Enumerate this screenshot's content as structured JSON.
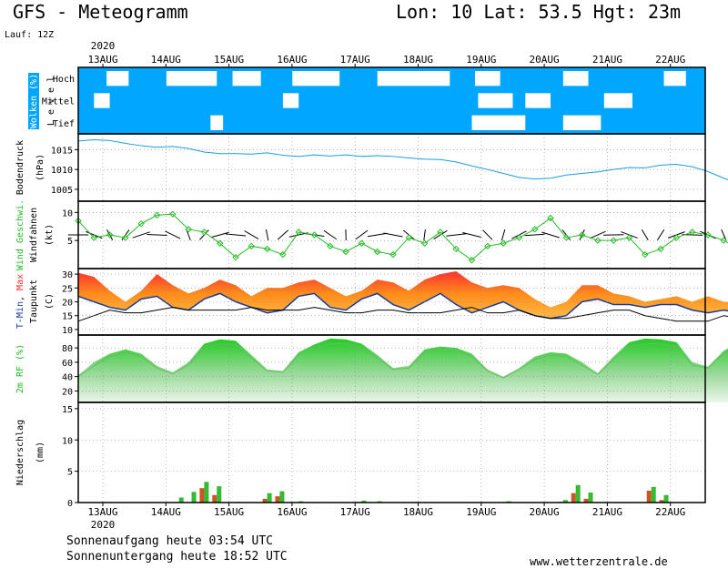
{
  "header": {
    "title": "GFS - Meteogramm",
    "location": "Lon: 10 Lat: 53.5 Hgt: 23m",
    "run": "Lauf: 12Z",
    "year_top": "2020",
    "year_bottom": "2020"
  },
  "dates": [
    "13AUG",
    "14AUG",
    "15AUG",
    "16AUG",
    "17AUG",
    "18AUG",
    "19AUG",
    "20AUG",
    "21AUG",
    "22AUG"
  ],
  "panels": {
    "clouds": {
      "label_main": "Wolken (%)",
      "label_sub": "L e v e l",
      "levels": [
        "Hoch",
        "Mittel",
        "Tief"
      ]
    },
    "pressure": {
      "label_main": "Bodendruck",
      "label_unit": "(hPa)",
      "ticks": [
        "1015",
        "1010",
        "1005"
      ]
    },
    "wind": {
      "label_main": "Wind Geschwi.",
      "label_sub": "Windfahnen",
      "label_unit": "(kt)",
      "ticks": [
        "10",
        "5"
      ]
    },
    "temp": {
      "label_min": "T-Min",
      "label_sep": ",",
      "label_max": "Max",
      "label_sub": "Taupunkt",
      "label_unit": "(C)",
      "ticks": [
        "30",
        "25",
        "20",
        "15",
        "10"
      ]
    },
    "rh": {
      "label_main": "2m RF (%)",
      "ticks": [
        "80",
        "60",
        "40",
        "20"
      ]
    },
    "precip": {
      "label_main": "Niederschlag",
      "label_unit": "(mm)",
      "ticks": [
        "15",
        "10",
        "5",
        "0"
      ]
    }
  },
  "chart_data": [
    {
      "type": "heatmap",
      "panel": "clouds",
      "rows": [
        "Hoch",
        "Mittel",
        "Tief"
      ],
      "colors": {
        "clear": "#00a6ff",
        "cloud": "#ffffff"
      },
      "cloud_cells": [
        [
          0,
          0.9,
          1.6
        ],
        [
          0,
          2.8,
          4.4
        ],
        [
          0,
          4.9,
          5.8
        ],
        [
          0,
          6.8,
          8.3
        ],
        [
          0,
          9.5,
          11.8
        ],
        [
          0,
          12.6,
          13.4
        ],
        [
          0,
          15.4,
          16.2
        ],
        [
          0,
          18.6,
          19.3
        ],
        [
          0,
          20.1,
          21.4
        ],
        [
          0,
          22.4,
          23.3
        ],
        [
          0,
          25.8,
          26.3
        ],
        [
          0,
          28.7,
          29.3
        ],
        [
          1,
          0.5,
          1.0
        ],
        [
          1,
          6.5,
          7.0
        ],
        [
          1,
          12.7,
          13.8
        ],
        [
          1,
          14.2,
          15.0
        ],
        [
          1,
          16.7,
          17.6
        ],
        [
          1,
          24.9,
          25.4
        ],
        [
          1,
          26.3,
          26.8
        ],
        [
          2,
          4.2,
          4.6
        ],
        [
          2,
          12.5,
          14.2
        ],
        [
          2,
          15.4,
          16.6
        ],
        [
          2,
          20.4,
          21.6
        ],
        [
          2,
          22.8,
          23.6
        ],
        [
          2,
          25.6,
          26.3
        ]
      ]
    },
    {
      "type": "line",
      "panel": "pressure",
      "ylabel": "(hPa)",
      "ylim": [
        1002,
        1019
      ],
      "color": "#1a9ee0",
      "x_days": [
        0,
        0.5,
        1,
        1.5,
        2,
        2.5,
        3,
        3.5,
        4,
        4.5,
        5,
        5.5,
        6,
        6.5,
        7,
        7.5,
        8,
        8.5,
        9,
        9.5,
        10,
        10.5,
        11,
        11.5,
        12,
        12.5,
        13,
        13.5,
        14,
        14.5,
        15,
        15.5,
        16,
        16.5,
        17,
        17.5,
        18,
        18.5,
        19,
        19.5,
        20,
        20.5,
        21,
        21.5,
        22,
        22.5,
        23,
        23.5,
        24,
        24.5,
        25,
        25.5,
        26,
        26.5,
        27,
        27.5,
        28,
        28.5,
        29,
        29.5,
        30
      ],
      "values": [
        1017.2,
        1017.5,
        1017.3,
        1016.6,
        1016.0,
        1015.6,
        1015.8,
        1015.3,
        1014.4,
        1014.0,
        1014.0,
        1013.9,
        1014.2,
        1013.6,
        1013.3,
        1013.7,
        1013.4,
        1013.7,
        1013.3,
        1013.5,
        1013.3,
        1012.9,
        1012.6,
        1012.5,
        1011.9,
        1010.9,
        1010.0,
        1009.0,
        1008.0,
        1007.6,
        1007.8,
        1008.6,
        1009.0,
        1009.4,
        1010.0,
        1010.5,
        1010.4,
        1011.1,
        1011.3,
        1010.7,
        1009.5,
        1007.8,
        1006.5,
        1005.3,
        1004.8,
        1004.9,
        1004.4,
        1004.2,
        1003.4,
        1003.0,
        1002.9,
        1003.1,
        1003.4,
        1004.0,
        1004.3,
        1004.4,
        1004.4,
        1004.7,
        1004.9,
        1004.4,
        1003.8
      ]
    },
    {
      "type": "line",
      "panel": "wind",
      "ylabel": "(kt)",
      "ylim": [
        0,
        12
      ],
      "color": "#22bb22",
      "x_days": [
        0,
        0.5,
        1,
        1.5,
        2,
        2.5,
        3,
        3.5,
        4,
        4.5,
        5,
        5.5,
        6,
        6.5,
        7,
        7.5,
        8,
        8.5,
        9,
        9.5,
        10,
        10.5,
        11,
        11.5,
        12,
        12.5,
        13,
        13.5,
        14,
        14.5,
        15,
        15.5,
        16,
        16.5,
        17,
        17.5,
        18,
        18.5,
        19,
        19.5,
        20,
        20.5,
        21,
        21.5,
        22,
        22.5,
        23,
        23.5,
        24,
        24.5,
        25,
        25.5,
        26,
        26.5,
        27,
        27.5,
        28,
        28.5,
        29,
        29.5,
        30
      ],
      "values": [
        8.5,
        5.5,
        6.0,
        5.5,
        8.0,
        9.5,
        9.7,
        7.0,
        6.5,
        4.5,
        2.0,
        4.0,
        3.5,
        2.5,
        6.5,
        6.0,
        4.0,
        3.0,
        4.5,
        3.0,
        2.5,
        5.5,
        4.5,
        6.5,
        3.5,
        1.5,
        4.0,
        4.5,
        5.5,
        7.0,
        9.0,
        5.5,
        6.0,
        5.0,
        5.0,
        5.5,
        2.5,
        3.5,
        5.5,
        6.5,
        6.0,
        5.0,
        3.5,
        1.5,
        2.5,
        3.5,
        6.0,
        6.5,
        6.0,
        4.5,
        2.5,
        3.0,
        6.0,
        2.0,
        6.0,
        7.0,
        3.5,
        2.5,
        8.0,
        4.5,
        9.5
      ]
    },
    {
      "type": "area",
      "panel": "temp",
      "ylabel": "(C)",
      "ylim": [
        8,
        32
      ],
      "series": [
        {
          "name": "T-Min",
          "color": "#1a3a9a"
        },
        {
          "name": "Max",
          "color": "#ff3030"
        },
        {
          "name": "Taupunkt",
          "color": "#000000"
        }
      ],
      "x_days": [
        0,
        0.5,
        1,
        1.5,
        2,
        2.5,
        3,
        3.5,
        4,
        4.5,
        5,
        5.5,
        6,
        6.5,
        7,
        7.5,
        8,
        8.5,
        9,
        9.5,
        10,
        10.5,
        11,
        11.5,
        12,
        12.5,
        13,
        13.5,
        14,
        14.5,
        15,
        15.5,
        16,
        16.5,
        17,
        17.5,
        18,
        18.5,
        19,
        19.5,
        20,
        20.5,
        21,
        21.5,
        22,
        22.5,
        23,
        23.5,
        24,
        24.5,
        25,
        25.5,
        26,
        26.5,
        27,
        27.5,
        28,
        28.5,
        29,
        29.5,
        30
      ],
      "tmin": [
        22,
        20,
        18,
        17,
        21,
        22,
        18,
        17,
        21,
        23,
        20,
        18,
        16,
        17,
        22,
        23,
        18,
        17,
        21,
        23,
        19,
        17,
        20,
        23,
        19,
        16,
        18,
        20,
        17,
        15,
        14,
        15,
        20,
        21,
        19,
        19,
        18,
        19,
        19,
        17,
        16,
        17,
        16,
        15,
        15,
        16,
        14,
        15,
        16,
        18,
        15,
        14,
        14,
        13,
        16,
        17,
        14,
        15,
        16,
        17,
        17
      ],
      "tmax": [
        30.5,
        29,
        24,
        20,
        24,
        30,
        26,
        23,
        25,
        28,
        26,
        22,
        25,
        25,
        27,
        28,
        25,
        22,
        24,
        28,
        27,
        24,
        28,
        30,
        31,
        27,
        25,
        26,
        25,
        21,
        18,
        20,
        26,
        26,
        23,
        22,
        20,
        21,
        22,
        20,
        22,
        20,
        20,
        19,
        19,
        20,
        18,
        18,
        20,
        23,
        22,
        20,
        20,
        18,
        19,
        21,
        19,
        20,
        20,
        19,
        22
      ],
      "dewpoint": [
        13,
        15,
        17,
        16,
        16,
        17,
        18,
        17,
        17,
        17,
        17,
        18,
        17,
        17,
        17,
        18,
        17,
        16,
        16,
        17,
        17,
        16,
        16,
        16,
        17,
        18,
        16,
        16,
        17,
        15,
        14,
        14,
        15,
        16,
        17,
        17,
        15,
        14,
        13,
        13,
        13,
        15,
        14,
        15,
        15,
        14,
        13,
        13,
        12,
        12,
        12,
        12,
        12,
        12,
        12,
        12,
        12,
        11,
        11,
        11,
        10
      ]
    },
    {
      "type": "area",
      "panel": "rh",
      "ylabel": "2m RF (%)",
      "ylim": [
        4,
        98
      ],
      "color": "#33cc33",
      "x_days": [
        0,
        0.5,
        1,
        1.5,
        2,
        2.5,
        3,
        3.5,
        4,
        4.5,
        5,
        5.5,
        6,
        6.5,
        7,
        7.5,
        8,
        8.5,
        9,
        9.5,
        10,
        10.5,
        11,
        11.5,
        12,
        12.5,
        13,
        13.5,
        14,
        14.5,
        15,
        15.5,
        16,
        16.5,
        17,
        17.5,
        18,
        18.5,
        19,
        19.5,
        20,
        20.5,
        21,
        21.5,
        22,
        22.5,
        23,
        23.5,
        24,
        24.5,
        25,
        25.5,
        26,
        26.5,
        27,
        27.5,
        28,
        28.5,
        29,
        29.5,
        30
      ],
      "values": [
        42,
        60,
        72,
        78,
        72,
        55,
        46,
        60,
        86,
        92,
        90,
        70,
        50,
        48,
        74,
        85,
        93,
        92,
        86,
        70,
        52,
        55,
        78,
        82,
        80,
        72,
        50,
        40,
        52,
        68,
        74,
        72,
        60,
        45,
        68,
        88,
        93,
        92,
        88,
        60,
        54,
        76,
        88,
        92,
        90,
        68,
        45,
        58,
        82,
        88,
        82,
        60,
        58,
        70,
        76,
        70,
        60,
        75,
        86,
        86,
        52
      ],
      "dew_line": [
        40,
        55,
        68,
        74,
        68,
        52,
        44,
        56,
        80,
        86,
        84,
        66,
        48,
        46,
        70,
        80,
        86,
        86,
        80,
        66,
        50,
        52,
        74,
        78,
        76,
        68,
        48,
        38,
        50,
        64,
        70,
        68,
        56,
        43,
        64,
        82,
        86,
        86,
        82,
        56,
        52,
        72,
        82,
        86,
        84,
        64,
        43,
        56,
        78,
        82,
        78,
        56,
        54,
        66,
        72,
        66,
        56,
        72,
        80,
        80,
        48
      ]
    },
    {
      "type": "bar",
      "panel": "precip",
      "ylabel": "(mm)",
      "ylim": [
        0,
        16
      ],
      "series": [
        {
          "name": "convective",
          "color": "#33bb33"
        },
        {
          "name": "large-scale",
          "color": "#cc5522"
        }
      ],
      "bars": [
        [
          3.2,
          0.8,
          0.0
        ],
        [
          3.6,
          1.7,
          0.0
        ],
        [
          4.0,
          3.3,
          2.3
        ],
        [
          4.4,
          2.6,
          1.2
        ],
        [
          5.0,
          0.1,
          0.0
        ],
        [
          6.0,
          1.5,
          0.6
        ],
        [
          6.4,
          1.8,
          1.0
        ],
        [
          7.0,
          0.2,
          0.0
        ],
        [
          9.0,
          0.3,
          0.1
        ],
        [
          9.5,
          0.2,
          0.0
        ],
        [
          13.6,
          0.2,
          0.0
        ],
        [
          15.4,
          0.4,
          0.1
        ],
        [
          15.8,
          2.8,
          1.5
        ],
        [
          16.2,
          1.6,
          0.6
        ],
        [
          18.2,
          2.5,
          1.9
        ],
        [
          18.6,
          1.2,
          0.4
        ],
        [
          22.8,
          1.1,
          0.6
        ],
        [
          23.2,
          2.2,
          1.0
        ],
        [
          23.6,
          1.7,
          1.6
        ],
        [
          26.8,
          0.4,
          0.2
        ],
        [
          27.2,
          0.7,
          0.3
        ],
        [
          27.6,
          0.6,
          0.2
        ],
        [
          28.0,
          0.5,
          0.1
        ]
      ]
    }
  ],
  "footer": {
    "sunrise": "Sonnenaufgang heute 03:54 UTC",
    "sunset": "Sonnenuntergang heute 18:52 UTC",
    "site": "www.wetterzentrale.de"
  }
}
